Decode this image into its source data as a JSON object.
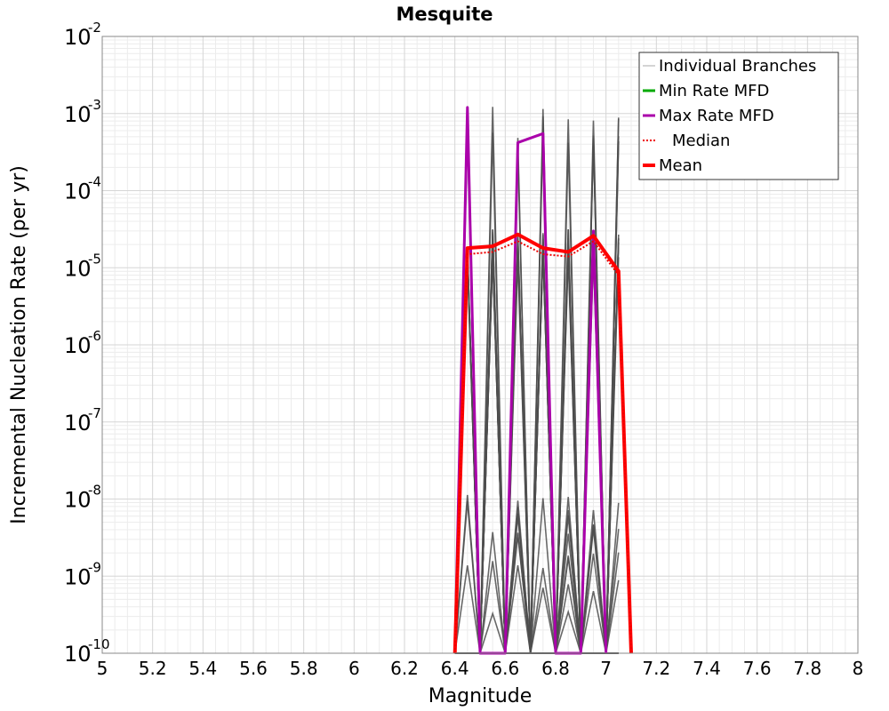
{
  "chart_data": {
    "type": "line",
    "title": "Mesquite",
    "xlabel": "Magnitude",
    "ylabel": "Incremental Nucleation Rate (per yr)",
    "x_scale": "linear",
    "y_scale": "log",
    "xlim": [
      5,
      8
    ],
    "ylim": [
      1e-10,
      0.01
    ],
    "grid": true,
    "legend_position": "top-right",
    "x_ticks": [
      "5",
      "5.2",
      "5.4",
      "5.6",
      "5.8",
      "6",
      "6.2",
      "6.4",
      "6.6",
      "6.8",
      "7",
      "7.2",
      "7.4",
      "7.6",
      "7.8",
      "8"
    ],
    "y_ticks": [
      {
        "base": "10",
        "exp": "-2"
      },
      {
        "base": "10",
        "exp": "-3"
      },
      {
        "base": "10",
        "exp": "-4"
      },
      {
        "base": "10",
        "exp": "-5"
      },
      {
        "base": "10",
        "exp": "-6"
      },
      {
        "base": "10",
        "exp": "-7"
      },
      {
        "base": "10",
        "exp": "-8"
      },
      {
        "base": "10",
        "exp": "-9"
      },
      {
        "base": "10",
        "exp": "-10"
      }
    ],
    "legend": [
      {
        "label": "Individual Branches",
        "color": "#aaaaaa",
        "style": "solid-thin"
      },
      {
        "label": "Min Rate MFD",
        "color": "#00aa00",
        "style": "solid"
      },
      {
        "label": "Max Rate MFD",
        "color": "#aa00aa",
        "style": "solid"
      },
      {
        "label": "Median",
        "color": "#ee0000",
        "style": "dotted"
      },
      {
        "label": "Mean",
        "color": "#ff0000",
        "style": "solid-thick"
      }
    ],
    "series": [
      {
        "name": "Mean",
        "color": "#ff0000",
        "x": [
          6.4,
          6.45,
          6.55,
          6.65,
          6.75,
          6.85,
          6.95,
          7.05,
          7.1
        ],
        "y": [
          1e-10,
          1.8e-05,
          1.9e-05,
          2.7e-05,
          1.8e-05,
          1.6e-05,
          2.6e-05,
          9e-06,
          1e-10
        ]
      },
      {
        "name": "Max Rate MFD",
        "color": "#aa00aa",
        "x": [
          6.4,
          6.45,
          6.5,
          6.6,
          6.65,
          6.75,
          6.8,
          6.9,
          6.95,
          7.0
        ],
        "y": [
          1e-10,
          0.0012,
          1e-10,
          1e-10,
          0.00042,
          0.00055,
          1e-10,
          1e-10,
          3e-05,
          1e-10
        ]
      },
      {
        "name": "Median",
        "color": "#ee0000",
        "x": [
          6.4,
          6.45,
          6.55,
          6.65,
          6.75,
          6.85,
          6.95,
          7.05,
          7.1
        ],
        "y": [
          1e-10,
          1.5e-05,
          1.6e-05,
          2.2e-05,
          1.5e-05,
          1.4e-05,
          2.2e-05,
          8e-06,
          1e-10
        ]
      }
    ],
    "branches": {
      "name": "Individual Branches",
      "count": 24,
      "x": [
        6.45,
        6.55,
        6.65,
        6.75,
        6.85,
        6.95,
        7.05
      ]
    }
  }
}
